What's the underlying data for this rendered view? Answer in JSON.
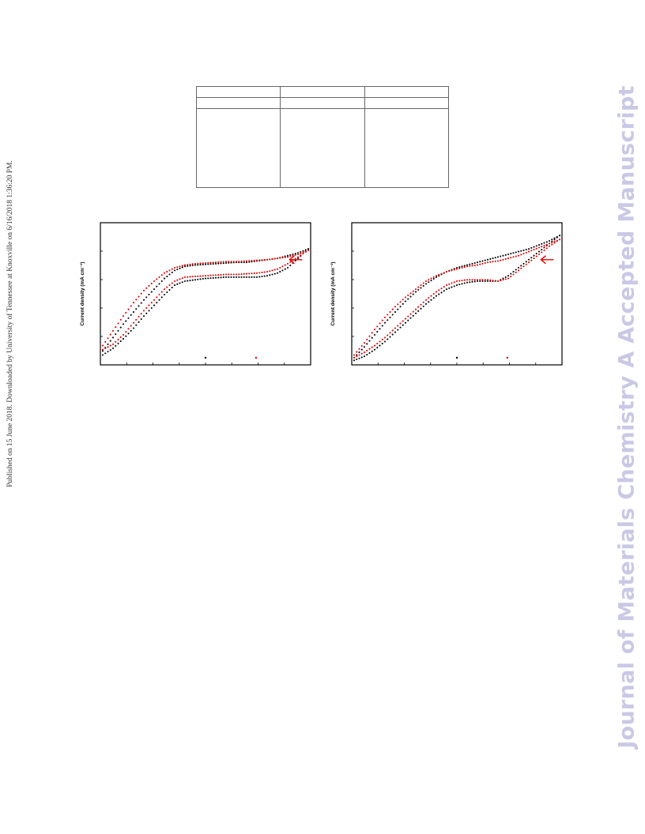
{
  "side_note": "Published on 15 June 2018. Downloaded by University of Tennessee at Knoxville on 6/16/2018 1:36:20 PM.",
  "watermark": "Journal of Materials Chemistry A Accepted Manuscript",
  "table": {
    "rows": [
      [
        "",
        "",
        ""
      ],
      [
        "",
        "",
        ""
      ],
      [
        "",
        "",
        ""
      ]
    ]
  },
  "colors": {
    "series_black": "#000000",
    "series_red": "#e00000",
    "arrow": "#e00000",
    "watermark": "#c9c9e6"
  },
  "chart_data": [
    {
      "type": "scatter",
      "ylabel": "Current density (mA cm⁻²)",
      "xlim": [
        0,
        1
      ],
      "ylim": [
        0,
        1
      ],
      "annotation": "red arrow",
      "series": [
        {
          "color": "#000000",
          "loops": [
            {
              "x": [
                0.0,
                0.05,
                0.1,
                0.15,
                0.2,
                0.25,
                0.3,
                0.35,
                0.4,
                0.45,
                0.5,
                0.55,
                0.6,
                0.65,
                0.7,
                0.75,
                0.8,
                0.85,
                0.9,
                0.95,
                1.0
              ],
              "y": [
                0.08,
                0.18,
                0.28,
                0.37,
                0.46,
                0.54,
                0.62,
                0.68,
                0.71,
                0.72,
                0.725,
                0.73,
                0.735,
                0.74,
                0.74,
                0.75,
                0.76,
                0.77,
                0.79,
                0.81,
                0.84
              ]
            },
            {
              "x": [
                1.0,
                0.95,
                0.9,
                0.85,
                0.8,
                0.75,
                0.7,
                0.65,
                0.6,
                0.55,
                0.5,
                0.45,
                0.4,
                0.35,
                0.3,
                0.25,
                0.2,
                0.15,
                0.1,
                0.05,
                0.0
              ],
              "y": [
                0.84,
                0.77,
                0.7,
                0.66,
                0.64,
                0.63,
                0.63,
                0.63,
                0.63,
                0.625,
                0.62,
                0.61,
                0.6,
                0.57,
                0.5,
                0.42,
                0.34,
                0.25,
                0.17,
                0.1,
                0.05
              ]
            }
          ]
        },
        {
          "color": "#e00000",
          "loops": [
            {
              "x": [
                0.0,
                0.05,
                0.1,
                0.15,
                0.2,
                0.25,
                0.3,
                0.35,
                0.4,
                0.45,
                0.5,
                0.55,
                0.6,
                0.65,
                0.7,
                0.75,
                0.8,
                0.85,
                0.9,
                0.95,
                1.0
              ],
              "y": [
                0.12,
                0.23,
                0.34,
                0.44,
                0.53,
                0.6,
                0.66,
                0.7,
                0.72,
                0.73,
                0.735,
                0.74,
                0.745,
                0.745,
                0.75,
                0.755,
                0.76,
                0.77,
                0.78,
                0.8,
                0.83
              ]
            },
            {
              "x": [
                1.0,
                0.95,
                0.9,
                0.85,
                0.8,
                0.75,
                0.7,
                0.65,
                0.6,
                0.55,
                0.5,
                0.45,
                0.4,
                0.35,
                0.3,
                0.25,
                0.2,
                0.15,
                0.1,
                0.05,
                0.0
              ],
              "y": [
                0.83,
                0.78,
                0.73,
                0.69,
                0.67,
                0.66,
                0.655,
                0.65,
                0.65,
                0.645,
                0.64,
                0.635,
                0.63,
                0.6,
                0.54,
                0.46,
                0.38,
                0.29,
                0.2,
                0.13,
                0.09
              ]
            }
          ]
        }
      ]
    },
    {
      "type": "scatter",
      "ylabel": "Current density (mA cm⁻²)",
      "xlim": [
        0,
        1
      ],
      "ylim": [
        0,
        1
      ],
      "annotation": "red arrow",
      "series": [
        {
          "color": "#000000",
          "loops": [
            {
              "x": [
                0.0,
                0.05,
                0.1,
                0.15,
                0.2,
                0.25,
                0.3,
                0.35,
                0.4,
                0.45,
                0.5,
                0.55,
                0.6,
                0.65,
                0.7,
                0.75,
                0.8,
                0.85,
                0.9,
                0.95,
                1.0
              ],
              "y": [
                0.03,
                0.11,
                0.2,
                0.29,
                0.37,
                0.45,
                0.52,
                0.58,
                0.63,
                0.67,
                0.7,
                0.72,
                0.74,
                0.76,
                0.78,
                0.8,
                0.82,
                0.84,
                0.87,
                0.9,
                0.94
              ]
            },
            {
              "x": [
                1.0,
                0.95,
                0.9,
                0.85,
                0.8,
                0.75,
                0.7,
                0.65,
                0.6,
                0.55,
                0.5,
                0.45,
                0.4,
                0.35,
                0.3,
                0.25,
                0.2,
                0.15,
                0.1,
                0.05,
                0.0
              ],
              "y": [
                0.94,
                0.88,
                0.82,
                0.76,
                0.7,
                0.64,
                0.6,
                0.6,
                0.6,
                0.59,
                0.57,
                0.54,
                0.49,
                0.43,
                0.36,
                0.29,
                0.22,
                0.15,
                0.09,
                0.04,
                0.01
              ]
            }
          ]
        },
        {
          "color": "#e00000",
          "loops": [
            {
              "x": [
                0.0,
                0.05,
                0.1,
                0.15,
                0.2,
                0.25,
                0.3,
                0.35,
                0.4,
                0.45,
                0.5,
                0.55,
                0.6,
                0.65,
                0.7,
                0.75,
                0.8,
                0.85,
                0.9,
                0.95,
                1.0
              ],
              "y": [
                0.05,
                0.14,
                0.24,
                0.33,
                0.41,
                0.48,
                0.54,
                0.6,
                0.64,
                0.67,
                0.69,
                0.71,
                0.72,
                0.74,
                0.75,
                0.77,
                0.79,
                0.82,
                0.85,
                0.88,
                0.91
              ]
            },
            {
              "x": [
                1.0,
                0.95,
                0.9,
                0.85,
                0.8,
                0.75,
                0.7,
                0.65,
                0.6,
                0.55,
                0.5,
                0.45,
                0.4,
                0.35,
                0.3,
                0.25,
                0.2,
                0.15,
                0.1,
                0.05,
                0.0
              ],
              "y": [
                0.91,
                0.86,
                0.8,
                0.74,
                0.68,
                0.62,
                0.6,
                0.61,
                0.61,
                0.61,
                0.6,
                0.57,
                0.52,
                0.46,
                0.39,
                0.32,
                0.25,
                0.18,
                0.12,
                0.07,
                0.03
              ]
            }
          ]
        }
      ]
    }
  ]
}
